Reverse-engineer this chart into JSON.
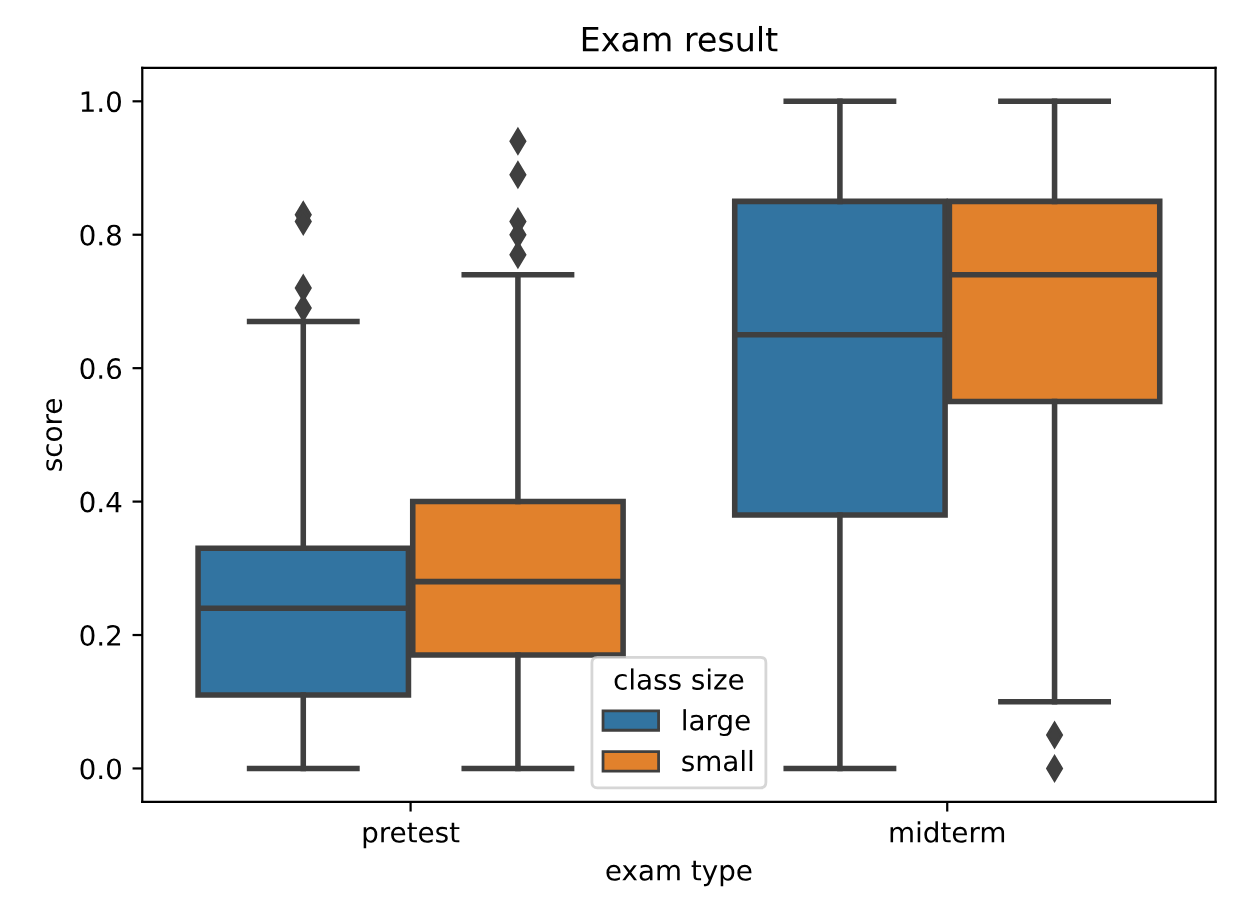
{
  "chart_data": {
    "type": "box",
    "title": "Exam result",
    "xlabel": "exam type",
    "ylabel": "score",
    "legend_title": "class size",
    "legend": "bottom",
    "grid": false,
    "categories": [
      "pretest",
      "midterm"
    ],
    "ylim": [
      -0.05,
      1.05
    ],
    "yticks": [
      {
        "value": 0,
        "label": "0.0"
      },
      0.2,
      0.4,
      0.6,
      0.8,
      {
        "value": 1,
        "label": "1.0"
      }
    ],
    "series": [
      {
        "name": "large",
        "color": "#3274a1",
        "boxes": [
          {
            "low": 0.0,
            "q1": 0.11,
            "median": 0.24,
            "q3": 0.33,
            "high": 0.67,
            "outliers": [
              0.83,
              0.82,
              0.72,
              0.69
            ]
          },
          {
            "low": 0.0,
            "q1": 0.38,
            "median": 0.65,
            "q3": 0.85,
            "high": 1.0
          }
        ]
      },
      {
        "name": "small",
        "color": "#e1812c",
        "boxes": [
          {
            "low": 0.0,
            "q1": 0.17,
            "median": 0.28,
            "q3": 0.4,
            "high": 0.74,
            "outliers": [
              0.94,
              0.89,
              0.82,
              0.8,
              0.77
            ]
          },
          {
            "low": 0.1,
            "q1": 0.55,
            "median": 0.74,
            "q3": 0.85,
            "high": 1.0,
            "outliers": [
              0.05,
              0.0
            ]
          }
        ]
      }
    ]
  }
}
